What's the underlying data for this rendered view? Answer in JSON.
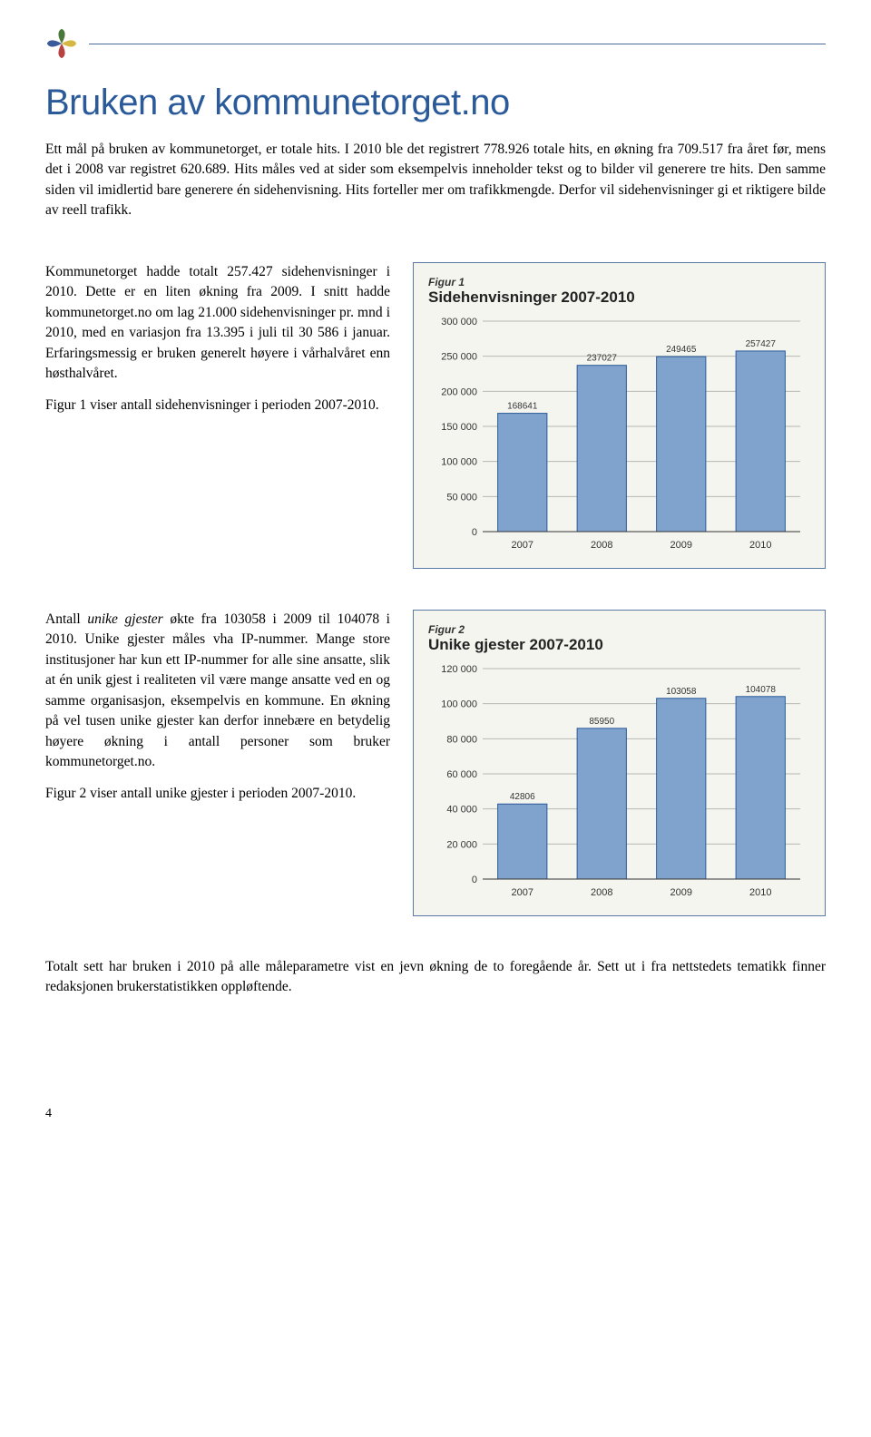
{
  "h1": "Bruken av kommunetorget.no",
  "intro": "Ett mål på bruken av kommunetorget, er totale hits. I 2010 ble det registrert 778.926 totale hits, en økning fra 709.517 fra året før, mens det i 2008 var registret 620.689. Hits måles ved at sider som eksempelvis inneholder tekst og to bilder vil generere tre hits. Den samme siden vil imidlertid bare generere én sidehenvisning. Hits forteller mer om trafikkmengde. Derfor vil sidehenvisninger gi et riktigere bilde av reell trafikk.",
  "section1": {
    "para1": "Kommunetorget hadde totalt 257.427 sidehenvisninger i 2010. Dette er en liten økning fra 2009. I snitt hadde kommunetorget.no om lag 21.000 sidehenvisninger pr. mnd i 2010, med en variasjon fra 13.395 i juli til 30 586 i januar. Erfaringsmessig er bruken generelt høyere i vårhalvåret enn høsthalvåret.",
    "para2": "Figur 1 viser antall sidehenvisninger i perioden 2007-2010."
  },
  "chart1": {
    "type": "bar",
    "fig_label": "Figur 1",
    "title": "Sidehenvisninger 2007-2010",
    "categories": [
      "2007",
      "2008",
      "2009",
      "2010"
    ],
    "values": [
      168641,
      237027,
      249465,
      257427
    ],
    "value_labels": [
      "168641",
      "237027",
      "249465",
      "257427"
    ],
    "ymax": 300000,
    "ytick_step": 50000,
    "ytick_labels": [
      "0",
      "50 000",
      "100 000",
      "150 000",
      "200 000",
      "250 000",
      "300 000"
    ],
    "bar_color": "#7fa3cc",
    "bar_border": "#2a5a9a",
    "grid_color": "#b8b8b0",
    "axis_color": "#333333",
    "font_family": "Arial, Helvetica, sans-serif",
    "label_font_size": 11,
    "value_font_size": 10
  },
  "section2": {
    "para1_prefix": "Antall ",
    "para1_em": "unike gjester",
    "para1_rest": " økte fra 103058 i 2009 til 104078 i 2010. Unike gjester måles vha IP-nummer. Mange store institusjoner har kun ett IP-nummer for alle sine ansatte, slik at én unik gjest i realiteten vil være mange ansatte ved en og samme organisasjon, eksempelvis en kommune. En økning på vel tusen unike gjester kan derfor innebære en betydelig høyere økning i antall personer som bruker kommunetorget.no.",
    "para2": "Figur 2 viser antall unike gjester i perioden 2007-2010."
  },
  "chart2": {
    "type": "bar",
    "fig_label": "Figur 2",
    "title": "Unike gjester 2007-2010",
    "categories": [
      "2007",
      "2008",
      "2009",
      "2010"
    ],
    "values": [
      42806,
      85950,
      103058,
      104078
    ],
    "value_labels": [
      "42806",
      "85950",
      "103058",
      "104078"
    ],
    "ymax": 120000,
    "ytick_step": 20000,
    "ytick_labels": [
      "0",
      "20 000",
      "40 000",
      "60 000",
      "80 000",
      "100 000",
      "120 000"
    ],
    "bar_color": "#7fa3cc",
    "bar_border": "#2a5a9a",
    "grid_color": "#b8b8b0",
    "axis_color": "#333333",
    "font_family": "Arial, Helvetica, sans-serif",
    "label_font_size": 11,
    "value_font_size": 10
  },
  "summary": "Totalt sett har bruken i 2010 på alle måleparametre vist en jevn økning de to foregående år. Sett ut i fra nettstedets tematikk finner redaksjonen brukerstatistikken oppløftende.",
  "page_number": "4"
}
